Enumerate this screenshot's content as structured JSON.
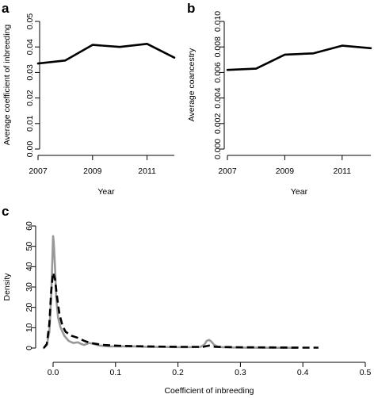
{
  "chart_data": [
    {
      "panel": "a",
      "type": "line",
      "xlabel": "Year",
      "ylabel": "Average coefficient of inbreeding",
      "x": [
        2007,
        2008,
        2009,
        2010,
        2011,
        2012
      ],
      "series": [
        {
          "values": [
            0.0335,
            0.0347,
            0.0408,
            0.04,
            0.0412,
            0.0358
          ],
          "color": "#000000",
          "style": "solid"
        }
      ],
      "xlim": [
        2007,
        2012
      ],
      "ylim": [
        0,
        0.05
      ],
      "xticks": [
        2007,
        2009,
        2011
      ],
      "xtick_labels": [
        "2007",
        "2009",
        "2011"
      ],
      "yticks": [
        0,
        0.01,
        0.02,
        0.03,
        0.04,
        0.05
      ],
      "ytick_labels": [
        "0.00",
        "0.01",
        "0.02",
        "0.03",
        "0.04",
        "0.05"
      ],
      "grid": false
    },
    {
      "panel": "b",
      "type": "line",
      "xlabel": "Year",
      "ylabel": "Average coancestry",
      "x": [
        2007,
        2008,
        2009,
        2010,
        2011,
        2012
      ],
      "series": [
        {
          "values": [
            0.0062,
            0.0063,
            0.0074,
            0.0075,
            0.0081,
            0.0079
          ],
          "color": "#000000",
          "style": "solid"
        }
      ],
      "xlim": [
        2007,
        2012
      ],
      "ylim": [
        0,
        0.01
      ],
      "xticks": [
        2007,
        2009,
        2011
      ],
      "xtick_labels": [
        "2007",
        "2009",
        "2011"
      ],
      "yticks": [
        0,
        0.002,
        0.004,
        0.006,
        0.008,
        0.01
      ],
      "ytick_labels": [
        "0.000",
        "0.002",
        "0.004",
        "0.006",
        "0.008",
        "0.010"
      ],
      "grid": false
    },
    {
      "panel": "c",
      "type": "line",
      "xlabel": "Coefficient of inbreeding",
      "ylabel": "Density",
      "xlim": [
        0,
        0.5
      ],
      "ylim": [
        0,
        60
      ],
      "xticks": [
        0,
        0.1,
        0.2,
        0.3,
        0.4,
        0.5
      ],
      "xtick_labels": [
        "0.0",
        "0.1",
        "0.2",
        "0.3",
        "0.4",
        "0.5"
      ],
      "yticks": [
        0,
        10,
        20,
        30,
        40,
        50,
        60
      ],
      "ytick_labels": [
        "0",
        "10",
        "20",
        "30",
        "40",
        "50",
        "60"
      ],
      "grid": false,
      "series": [
        {
          "color": "#999999",
          "style": "solid",
          "x": [
            -0.015,
            -0.01,
            -0.006,
            -0.003,
            -0.001,
            0.0,
            0.001,
            0.003,
            0.005,
            0.008,
            0.012,
            0.018,
            0.025,
            0.032,
            0.04,
            0.045,
            0.05,
            0.058,
            0.065,
            0.075,
            0.09,
            0.11,
            0.13,
            0.15,
            0.18,
            0.21,
            0.235,
            0.242,
            0.246,
            0.25,
            0.254,
            0.258,
            0.265,
            0.28,
            0.3,
            0.33,
            0.36,
            0.39
          ],
          "y": [
            0,
            1.5,
            8,
            25,
            45,
            55,
            52,
            40,
            25,
            15,
            10,
            6,
            3.5,
            2.5,
            2.8,
            2.0,
            1.5,
            2.5,
            2.0,
            1.2,
            0.8,
            0.8,
            0.8,
            0.6,
            0.5,
            0.4,
            0.5,
            1.5,
            3.5,
            4.0,
            3.0,
            1.5,
            0.5,
            0.3,
            0.2,
            0.15,
            0.1,
            0.1
          ]
        },
        {
          "color": "#000000",
          "style": "dashed",
          "x": [
            -0.015,
            -0.01,
            -0.006,
            -0.003,
            0.0,
            0.003,
            0.006,
            0.01,
            0.015,
            0.02,
            0.03,
            0.04,
            0.05,
            0.06,
            0.08,
            0.1,
            0.12,
            0.15,
            0.2,
            0.24,
            0.25,
            0.26,
            0.3,
            0.35,
            0.4,
            0.425
          ],
          "y": [
            0,
            2,
            12,
            28,
            37,
            34,
            26,
            17,
            11,
            8,
            6,
            5,
            3.5,
            2.5,
            1.5,
            1.2,
            1.0,
            0.8,
            0.6,
            0.6,
            1.2,
            0.6,
            0.4,
            0.3,
            0.2,
            0.2
          ]
        }
      ]
    }
  ]
}
